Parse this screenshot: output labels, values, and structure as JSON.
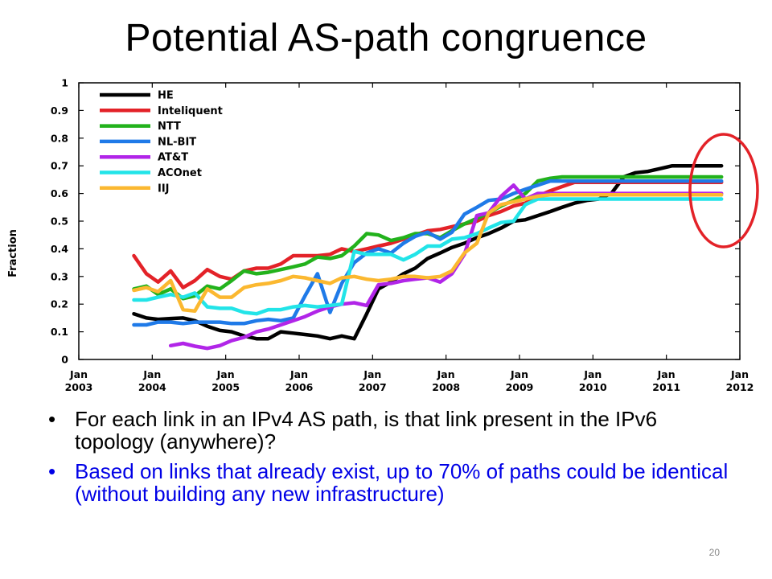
{
  "slide": {
    "title": "Potential AS-path congruence",
    "page_number": "20",
    "bullets": [
      "For each link in an IPv4 AS path, is that link present in the IPv6 topology (anywhere)?",
      "Based on links that already exist, up to 70% of paths could be identical (without building any new infrastructure)"
    ],
    "colors": {
      "bullet1": "#000000",
      "bullet2": "#0000e6",
      "highlight_circle": "#e32228"
    }
  },
  "chart_data": {
    "type": "line",
    "title": "",
    "xlabel": "",
    "ylabel": "Fraction",
    "xlim": [
      2003.0,
      2012.0
    ],
    "ylim": [
      0,
      1
    ],
    "x_ticks": [
      {
        "line1": "Jan",
        "line2": "2003",
        "x": 2003
      },
      {
        "line1": "Jan",
        "line2": "2004",
        "x": 2004
      },
      {
        "line1": "Jan",
        "line2": "2005",
        "x": 2005
      },
      {
        "line1": "Jan",
        "line2": "2006",
        "x": 2006
      },
      {
        "line1": "Jan",
        "line2": "2007",
        "x": 2007
      },
      {
        "line1": "Jan",
        "line2": "2008",
        "x": 2008
      },
      {
        "line1": "Jan",
        "line2": "2009",
        "x": 2009
      },
      {
        "line1": "Jan",
        "line2": "2010",
        "x": 2010
      },
      {
        "line1": "Jan",
        "line2": "2011",
        "x": 2011
      },
      {
        "line1": "Jan",
        "line2": "2012",
        "x": 2012
      }
    ],
    "y_ticks": [
      "0",
      "0.1",
      "0.2",
      "0.3",
      "0.4",
      "0.5",
      "0.6",
      "0.7",
      "0.8",
      "0.9",
      "1"
    ],
    "grid": false,
    "legend_position": "top-left",
    "series": [
      {
        "name": "HE",
        "color": "#000000",
        "x": [
          2003.75,
          2003.92,
          2004.08,
          2004.25,
          2004.42,
          2004.58,
          2004.75,
          2004.92,
          2005.08,
          2005.25,
          2005.42,
          2005.58,
          2005.75,
          2005.92,
          2006.08,
          2006.25,
          2006.42,
          2006.58,
          2006.75,
          2006.92,
          2007.08,
          2007.25,
          2007.42,
          2007.58,
          2007.75,
          2007.92,
          2008.08,
          2008.25,
          2008.42,
          2008.58,
          2008.75,
          2008.92,
          2009.08,
          2009.25,
          2009.42,
          2009.58,
          2009.75,
          2009.92,
          2010.08,
          2010.25,
          2010.42,
          2010.58,
          2010.75,
          2010.92,
          2011.08,
          2011.25,
          2011.42,
          2011.58,
          2011.75
        ],
        "y": [
          0.165,
          0.15,
          0.145,
          0.148,
          0.15,
          0.14,
          0.12,
          0.105,
          0.1,
          0.085,
          0.075,
          0.075,
          0.1,
          0.095,
          0.09,
          0.085,
          0.075,
          0.085,
          0.075,
          0.165,
          0.255,
          0.28,
          0.31,
          0.33,
          0.365,
          0.385,
          0.405,
          0.42,
          0.44,
          0.455,
          0.475,
          0.5,
          0.505,
          0.52,
          0.535,
          0.55,
          0.565,
          0.575,
          0.58,
          0.6,
          0.66,
          0.675,
          0.68,
          0.69,
          0.7,
          0.7,
          0.7,
          0.7,
          0.7
        ]
      },
      {
        "name": "Inteliquent",
        "color": "#e32228",
        "x": [
          2003.75,
          2003.92,
          2004.08,
          2004.25,
          2004.42,
          2004.58,
          2004.75,
          2004.92,
          2005.08,
          2005.25,
          2005.42,
          2005.58,
          2005.75,
          2005.92,
          2006.08,
          2006.25,
          2006.42,
          2006.58,
          2006.75,
          2006.92,
          2007.08,
          2007.25,
          2007.42,
          2007.58,
          2007.75,
          2007.92,
          2008.08,
          2008.25,
          2008.42,
          2008.58,
          2008.75,
          2008.92,
          2009.08,
          2009.25,
          2009.42,
          2009.58,
          2009.75,
          2009.92,
          2010.08,
          2010.25,
          2010.42,
          2010.58,
          2010.75,
          2010.92,
          2011.08,
          2011.25,
          2011.42,
          2011.58,
          2011.75
        ],
        "y": [
          0.375,
          0.31,
          0.28,
          0.32,
          0.26,
          0.285,
          0.325,
          0.3,
          0.29,
          0.32,
          0.33,
          0.33,
          0.345,
          0.375,
          0.375,
          0.375,
          0.38,
          0.4,
          0.39,
          0.4,
          0.41,
          0.42,
          0.435,
          0.45,
          0.465,
          0.47,
          0.48,
          0.49,
          0.5,
          0.52,
          0.535,
          0.555,
          0.565,
          0.59,
          0.61,
          0.625,
          0.64,
          0.64,
          0.64,
          0.64,
          0.64,
          0.64,
          0.64,
          0.64,
          0.64,
          0.64,
          0.64,
          0.64,
          0.64
        ]
      },
      {
        "name": "NTT",
        "color": "#22b21c",
        "x": [
          2003.75,
          2003.92,
          2004.08,
          2004.25,
          2004.42,
          2004.58,
          2004.75,
          2004.92,
          2005.08,
          2005.25,
          2005.42,
          2005.58,
          2005.75,
          2005.92,
          2006.08,
          2006.25,
          2006.42,
          2006.58,
          2006.75,
          2006.92,
          2007.08,
          2007.25,
          2007.42,
          2007.58,
          2007.75,
          2007.92,
          2008.08,
          2008.25,
          2008.42,
          2008.58,
          2008.75,
          2008.92,
          2009.08,
          2009.25,
          2009.42,
          2009.58,
          2009.75,
          2009.92,
          2010.08,
          2010.25,
          2010.42,
          2010.58,
          2010.75,
          2010.92,
          2011.08,
          2011.25,
          2011.42,
          2011.58,
          2011.75
        ],
        "y": [
          0.255,
          0.265,
          0.235,
          0.255,
          0.22,
          0.23,
          0.265,
          0.255,
          0.285,
          0.32,
          0.31,
          0.315,
          0.325,
          0.335,
          0.345,
          0.37,
          0.365,
          0.375,
          0.41,
          0.455,
          0.45,
          0.43,
          0.44,
          0.455,
          0.455,
          0.44,
          0.465,
          0.49,
          0.51,
          0.53,
          0.555,
          0.575,
          0.6,
          0.645,
          0.655,
          0.66,
          0.66,
          0.66,
          0.66,
          0.66,
          0.66,
          0.66,
          0.66,
          0.66,
          0.66,
          0.66,
          0.66,
          0.66,
          0.66
        ]
      },
      {
        "name": "NL-BIT",
        "color": "#1f7ae8",
        "x": [
          2003.75,
          2003.92,
          2004.08,
          2004.25,
          2004.42,
          2004.58,
          2004.75,
          2004.92,
          2005.08,
          2005.25,
          2005.42,
          2005.58,
          2005.75,
          2005.92,
          2006.08,
          2006.25,
          2006.42,
          2006.58,
          2006.75,
          2006.92,
          2007.08,
          2007.25,
          2007.42,
          2007.58,
          2007.75,
          2007.92,
          2008.08,
          2008.25,
          2008.42,
          2008.58,
          2008.75,
          2008.92,
          2009.08,
          2009.25,
          2009.42,
          2009.58,
          2009.75,
          2009.92,
          2010.08,
          2010.25,
          2010.42,
          2010.58,
          2010.75,
          2010.92,
          2011.08,
          2011.25,
          2011.42,
          2011.58,
          2011.75
        ],
        "y": [
          0.125,
          0.125,
          0.135,
          0.135,
          0.13,
          0.135,
          0.135,
          0.135,
          0.13,
          0.13,
          0.14,
          0.145,
          0.14,
          0.15,
          0.23,
          0.31,
          0.17,
          0.275,
          0.35,
          0.385,
          0.4,
          0.385,
          0.42,
          0.445,
          0.46,
          0.435,
          0.46,
          0.525,
          0.55,
          0.575,
          0.58,
          0.6,
          0.615,
          0.63,
          0.645,
          0.645,
          0.645,
          0.645,
          0.645,
          0.645,
          0.645,
          0.645,
          0.645,
          0.645,
          0.645,
          0.645,
          0.645,
          0.645,
          0.645
        ]
      },
      {
        "name": "AT&T",
        "color": "#b125e8",
        "x": [
          2004.25,
          2004.42,
          2004.58,
          2004.75,
          2004.92,
          2005.08,
          2005.25,
          2005.42,
          2005.58,
          2005.75,
          2005.92,
          2006.08,
          2006.25,
          2006.42,
          2006.58,
          2006.75,
          2006.92,
          2007.08,
          2007.25,
          2007.42,
          2007.58,
          2007.75,
          2007.92,
          2008.08,
          2008.25,
          2008.42,
          2008.58,
          2008.75,
          2008.92,
          2009.08,
          2009.25,
          2009.42,
          2009.58,
          2009.75,
          2009.92,
          2010.08,
          2010.25,
          2010.42,
          2010.58,
          2010.75,
          2010.92,
          2011.08,
          2011.25,
          2011.42,
          2011.58,
          2011.75
        ],
        "y": [
          0.05,
          0.058,
          0.048,
          0.04,
          0.05,
          0.068,
          0.08,
          0.1,
          0.11,
          0.125,
          0.14,
          0.155,
          0.175,
          0.19,
          0.2,
          0.205,
          0.195,
          0.27,
          0.275,
          0.285,
          0.29,
          0.295,
          0.28,
          0.31,
          0.38,
          0.52,
          0.53,
          0.59,
          0.63,
          0.58,
          0.6,
          0.6,
          0.6,
          0.6,
          0.6,
          0.6,
          0.6,
          0.6,
          0.6,
          0.6,
          0.6,
          0.6,
          0.6,
          0.6,
          0.6,
          0.6
        ]
      },
      {
        "name": "ACOnet",
        "color": "#22e4e8",
        "x": [
          2003.75,
          2003.92,
          2004.08,
          2004.25,
          2004.42,
          2004.58,
          2004.75,
          2004.92,
          2005.08,
          2005.25,
          2005.42,
          2005.58,
          2005.75,
          2005.92,
          2006.08,
          2006.25,
          2006.42,
          2006.58,
          2006.75,
          2006.92,
          2007.08,
          2007.25,
          2007.42,
          2007.58,
          2007.75,
          2007.92,
          2008.08,
          2008.25,
          2008.42,
          2008.58,
          2008.75,
          2008.92,
          2009.08,
          2009.25,
          2009.42,
          2009.58,
          2009.75,
          2009.92,
          2010.08,
          2010.25,
          2010.42,
          2010.58,
          2010.75,
          2010.92,
          2011.08,
          2011.25,
          2011.42,
          2011.58,
          2011.75
        ],
        "y": [
          0.215,
          0.215,
          0.225,
          0.235,
          0.225,
          0.24,
          0.19,
          0.185,
          0.185,
          0.17,
          0.165,
          0.18,
          0.18,
          0.19,
          0.195,
          0.19,
          0.195,
          0.2,
          0.39,
          0.38,
          0.38,
          0.38,
          0.36,
          0.38,
          0.41,
          0.41,
          0.435,
          0.44,
          0.455,
          0.475,
          0.495,
          0.5,
          0.56,
          0.58,
          0.58,
          0.58,
          0.58,
          0.58,
          0.58,
          0.58,
          0.58,
          0.58,
          0.58,
          0.58,
          0.58,
          0.58,
          0.58,
          0.58,
          0.58
        ]
      },
      {
        "name": "IIJ",
        "color": "#fbb830",
        "x": [
          2003.75,
          2003.92,
          2004.08,
          2004.25,
          2004.42,
          2004.58,
          2004.75,
          2004.92,
          2005.08,
          2005.25,
          2005.42,
          2005.58,
          2005.75,
          2005.92,
          2006.08,
          2006.25,
          2006.42,
          2006.58,
          2006.75,
          2006.92,
          2007.08,
          2007.25,
          2007.42,
          2007.58,
          2007.75,
          2007.92,
          2008.08,
          2008.25,
          2008.42,
          2008.58,
          2008.75,
          2008.92,
          2009.08,
          2009.25,
          2009.42,
          2009.58,
          2009.75,
          2009.92,
          2010.08,
          2010.25,
          2010.42,
          2010.58,
          2010.75,
          2010.92,
          2011.08,
          2011.25,
          2011.42,
          2011.58,
          2011.75
        ],
        "y": [
          0.25,
          0.26,
          0.245,
          0.285,
          0.18,
          0.175,
          0.255,
          0.225,
          0.225,
          0.26,
          0.27,
          0.275,
          0.285,
          0.3,
          0.295,
          0.285,
          0.275,
          0.295,
          0.3,
          0.29,
          0.285,
          0.29,
          0.3,
          0.3,
          0.295,
          0.3,
          0.32,
          0.385,
          0.42,
          0.53,
          0.56,
          0.57,
          0.58,
          0.59,
          0.595,
          0.595,
          0.595,
          0.595,
          0.595,
          0.595,
          0.595,
          0.595,
          0.595,
          0.595,
          0.595,
          0.595,
          0.595,
          0.595,
          0.595
        ]
      }
    ]
  }
}
